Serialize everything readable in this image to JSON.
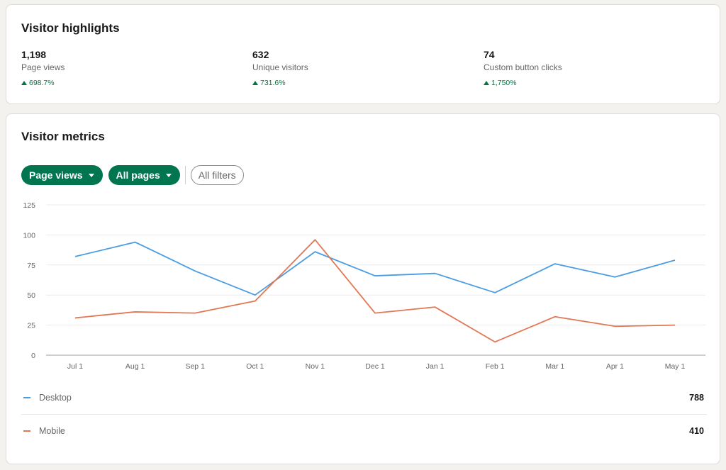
{
  "highlights": {
    "title": "Visitor highlights",
    "metrics": [
      {
        "value": "1,198",
        "label": "Page views",
        "change": "698.7%"
      },
      {
        "value": "632",
        "label": "Unique visitors",
        "change": "731.6%"
      },
      {
        "value": "74",
        "label": "Custom button clicks",
        "change": "1,750%"
      }
    ]
  },
  "metrics": {
    "title": "Visitor metrics",
    "filters": {
      "metric_label": "Page views",
      "pages_label": "All pages",
      "all_filters_label": "All filters"
    },
    "legend": [
      {
        "name": "Desktop",
        "total": "788",
        "color": "#4a9ce3"
      },
      {
        "name": "Mobile",
        "total": "410",
        "color": "#e17855"
      }
    ]
  },
  "colors": {
    "accent_green": "#01754f",
    "positive_green": "#057642"
  },
  "chart_data": {
    "type": "line",
    "categories": [
      "Jul 1",
      "Aug 1",
      "Sep 1",
      "Oct 1",
      "Nov 1",
      "Dec 1",
      "Jan 1",
      "Feb 1",
      "Mar 1",
      "Apr 1",
      "May 1"
    ],
    "y_ticks": [
      "0",
      "25",
      "50",
      "75",
      "100",
      "125"
    ],
    "ylim": [
      0,
      125
    ],
    "grid": true,
    "legend_placement": "bottom",
    "series": [
      {
        "name": "Desktop",
        "color": "#4a9ce3",
        "values": [
          82,
          94,
          70,
          50,
          86,
          66,
          68,
          52,
          76,
          65,
          79
        ]
      },
      {
        "name": "Mobile",
        "color": "#e17855",
        "values": [
          31,
          36,
          35,
          45,
          96,
          35,
          40,
          11,
          32,
          24,
          25
        ]
      }
    ]
  }
}
